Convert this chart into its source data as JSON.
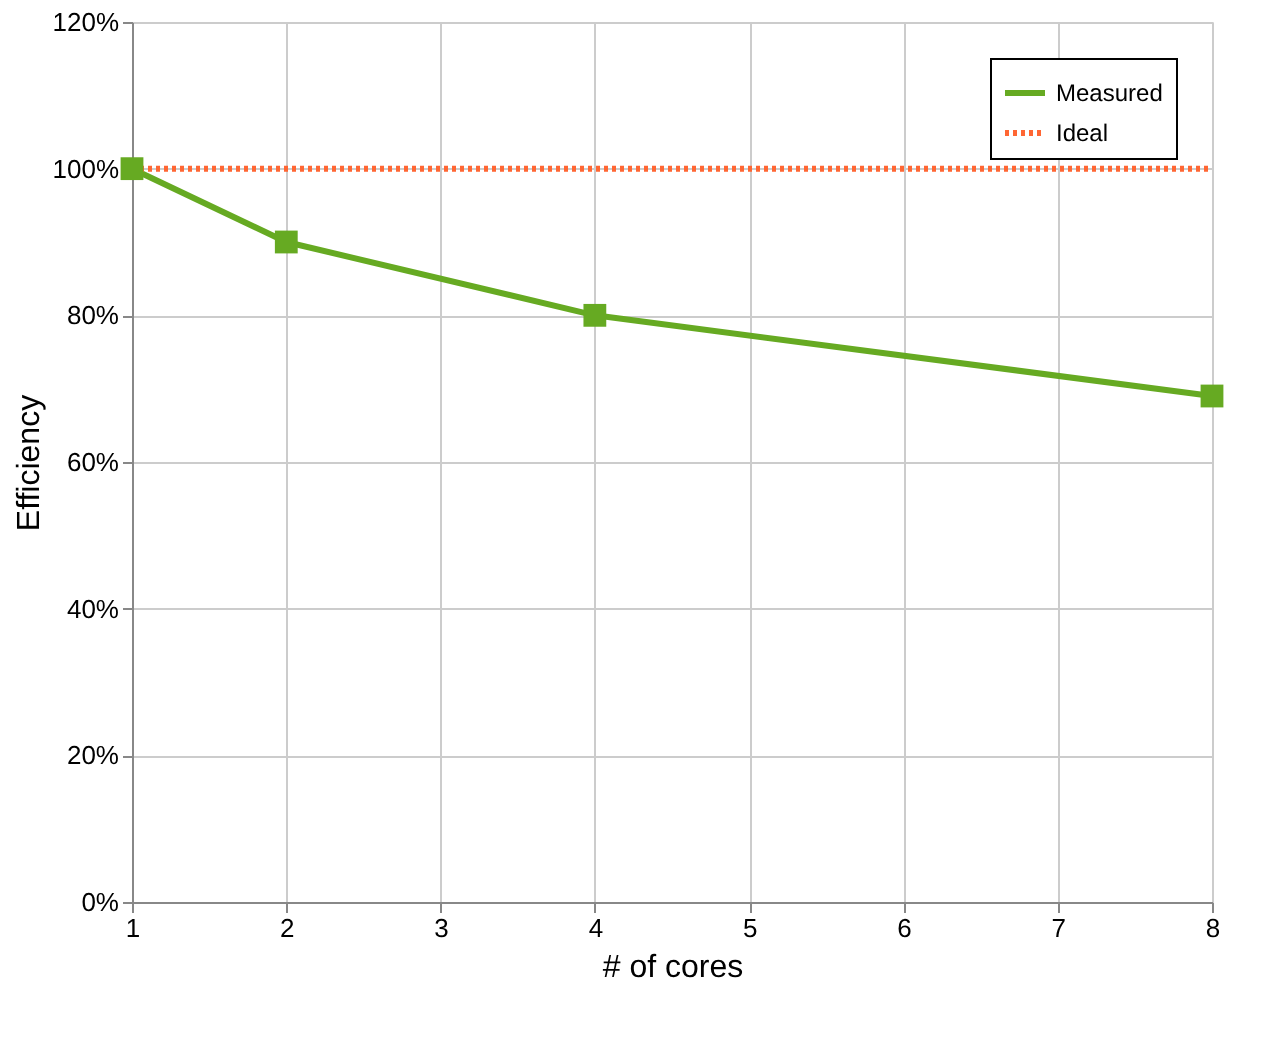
{
  "chart_data": {
    "type": "line",
    "xlabel": "# of cores",
    "ylabel": "Efficiency",
    "x": [
      1,
      2,
      4,
      8
    ],
    "series": [
      {
        "name": "Measured",
        "color": "#66aa22",
        "values": [
          100,
          90,
          80,
          69
        ],
        "marker": "square",
        "line_style": "solid"
      },
      {
        "name": "Ideal",
        "color": "#ff6633",
        "x": [
          1,
          8
        ],
        "values": [
          100,
          100
        ],
        "marker": "none",
        "line_style": "dotted"
      }
    ],
    "xlim": [
      1,
      8
    ],
    "xticks": [
      1,
      2,
      3,
      4,
      5,
      6,
      7,
      8
    ],
    "ylim": [
      0,
      120
    ],
    "yticks": [
      {
        "value": 0,
        "label": "0%"
      },
      {
        "value": 20,
        "label": "20%"
      },
      {
        "value": 40,
        "label": "40%"
      },
      {
        "value": 60,
        "label": "60%"
      },
      {
        "value": 80,
        "label": "80%"
      },
      {
        "value": 100,
        "label": "100%"
      },
      {
        "value": 120,
        "label": "120%"
      }
    ],
    "grid": true,
    "legend": "top right"
  }
}
